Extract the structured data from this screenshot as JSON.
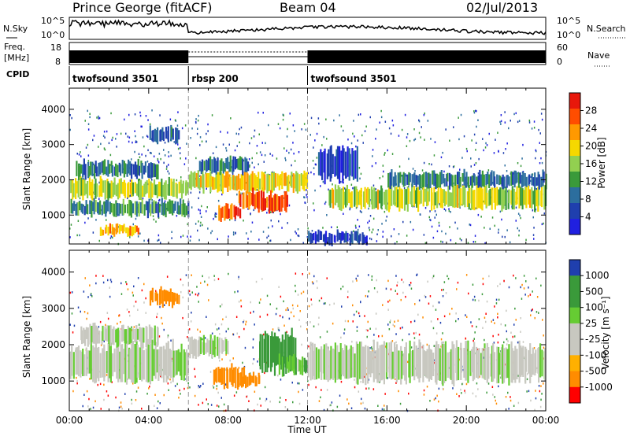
{
  "header": {
    "station": "Prince George (fitACF)",
    "beam": "Beam 04",
    "date": "02/Jul/2013"
  },
  "aux_panels": {
    "noise": {
      "left_label": "N.Sky",
      "left_ticks": [
        "10^5",
        "10^0"
      ],
      "right_ticks": [
        "10^5",
        "10^0"
      ],
      "right_label": "N.Search"
    },
    "freq": {
      "left_label_1": "Freq.",
      "left_label_2": "[MHz]",
      "left_ticks": [
        "18",
        "8"
      ],
      "right_ticks": [
        "60",
        "0"
      ],
      "right_label": "Nave"
    },
    "cpid": {
      "label": "CPID",
      "segments": [
        {
          "name": "twofsound 3501",
          "start_h": 0,
          "end_h": 6
        },
        {
          "name": "rbsp 200",
          "start_h": 6,
          "end_h": 12
        },
        {
          "name": "twofsound 3501",
          "start_h": 12,
          "end_h": 24
        }
      ]
    }
  },
  "chart_data": [
    {
      "type": "heatmap",
      "panel": "power",
      "ylabel": "Slant Range [km]",
      "yticks": [
        1000,
        2000,
        3000,
        4000
      ],
      "ylim": [
        180,
        4600
      ],
      "xlim_hours": [
        0,
        24
      ],
      "colorbar_label": "Power [dB]",
      "colorbar_ticks": [
        "28",
        "24",
        "20",
        "16",
        "12",
        "8",
        "4"
      ],
      "colorbar_colors": [
        "#e8170b",
        "#ff4d00",
        "#ff9900",
        "#f5d800",
        "#92d050",
        "#3a9a3a",
        "#2c6e9e",
        "#1f3fae",
        "#2020e0"
      ],
      "bands": [
        {
          "x0": 0.0,
          "x1": 6.0,
          "r0": 1000,
          "r1": 1400,
          "level": 12
        },
        {
          "x0": 0.0,
          "x1": 6.0,
          "r0": 1500,
          "r1": 2000,
          "level": 18
        },
        {
          "x0": 0.3,
          "x1": 4.5,
          "r0": 2100,
          "r1": 2500,
          "level": 10
        },
        {
          "x0": 1.5,
          "x1": 3.5,
          "r0": 450,
          "r1": 700,
          "level": 22
        },
        {
          "x0": 4.0,
          "x1": 5.5,
          "r0": 3100,
          "r1": 3500,
          "level": 8
        },
        {
          "x0": 6.0,
          "x1": 12.0,
          "r0": 1700,
          "r1": 2200,
          "level": 20
        },
        {
          "x0": 6.5,
          "x1": 9.0,
          "r0": 2200,
          "r1": 2600,
          "level": 10
        },
        {
          "x0": 7.5,
          "x1": 8.6,
          "r0": 850,
          "r1": 1250,
          "level": 28
        },
        {
          "x0": 9.5,
          "x1": 11.0,
          "r0": 1100,
          "r1": 1600,
          "level": 27
        },
        {
          "x0": 8.5,
          "x1": 9.6,
          "r0": 1200,
          "r1": 1700,
          "level": 26
        },
        {
          "x0": 12.5,
          "x1": 14.5,
          "r0": 2000,
          "r1": 2900,
          "level": 6
        },
        {
          "x0": 13.0,
          "x1": 24.0,
          "r0": 1200,
          "r1": 1800,
          "level": 18
        },
        {
          "x0": 16.0,
          "x1": 24.0,
          "r0": 1800,
          "r1": 2200,
          "level": 10
        },
        {
          "x0": 12.0,
          "x1": 15.0,
          "r0": 200,
          "r1": 500,
          "level": 6
        }
      ]
    },
    {
      "type": "heatmap",
      "panel": "velocity",
      "ylabel": "Slant Range [km]",
      "yticks": [
        1000,
        2000,
        3000,
        4000
      ],
      "ylim": [
        180,
        4600
      ],
      "xlim_hours": [
        0,
        24
      ],
      "xticks": [
        "00:00",
        "04:00",
        "08:00",
        "12:00",
        "16:00",
        "20:00",
        "00:00"
      ],
      "xlabel": "Time UT",
      "colorbar_label": "Velocity [m s⁻¹]",
      "colorbar_ticks": [
        "1000",
        "500",
        "100",
        "25",
        "-25",
        "-100",
        "-500",
        "-1000"
      ],
      "colorbar_colors": [
        "#1f3fae",
        "#3a9a3a",
        "#3a9a3a",
        "#66cc33",
        "#c8c8c0",
        "#c8c8c0",
        "#ffb000",
        "#ff8c00",
        "#ff0000"
      ],
      "bands": [
        {
          "x0": 0.0,
          "x1": 6.0,
          "r0": 1000,
          "r1": 2000,
          "vel": 0
        },
        {
          "x0": 0.5,
          "x1": 4.5,
          "r0": 2000,
          "r1": 2500,
          "vel": 0
        },
        {
          "x0": 6.0,
          "x1": 8.0,
          "r0": 1700,
          "r1": 2200,
          "vel": 0
        },
        {
          "x0": 7.2,
          "x1": 8.8,
          "r0": 850,
          "r1": 1400,
          "vel": -400
        },
        {
          "x0": 8.6,
          "x1": 9.6,
          "r0": 900,
          "r1": 1200,
          "vel": -300
        },
        {
          "x0": 9.5,
          "x1": 11.4,
          "r0": 1300,
          "r1": 2300,
          "vel": 300
        },
        {
          "x0": 10.5,
          "x1": 12.0,
          "r0": 1200,
          "r1": 1700,
          "vel": 80
        },
        {
          "x0": 12.0,
          "x1": 24.0,
          "r0": 1000,
          "r1": 2000,
          "vel": 0
        },
        {
          "x0": 4.0,
          "x1": 5.5,
          "r0": 3100,
          "r1": 3500,
          "vel": -200
        }
      ]
    }
  ]
}
